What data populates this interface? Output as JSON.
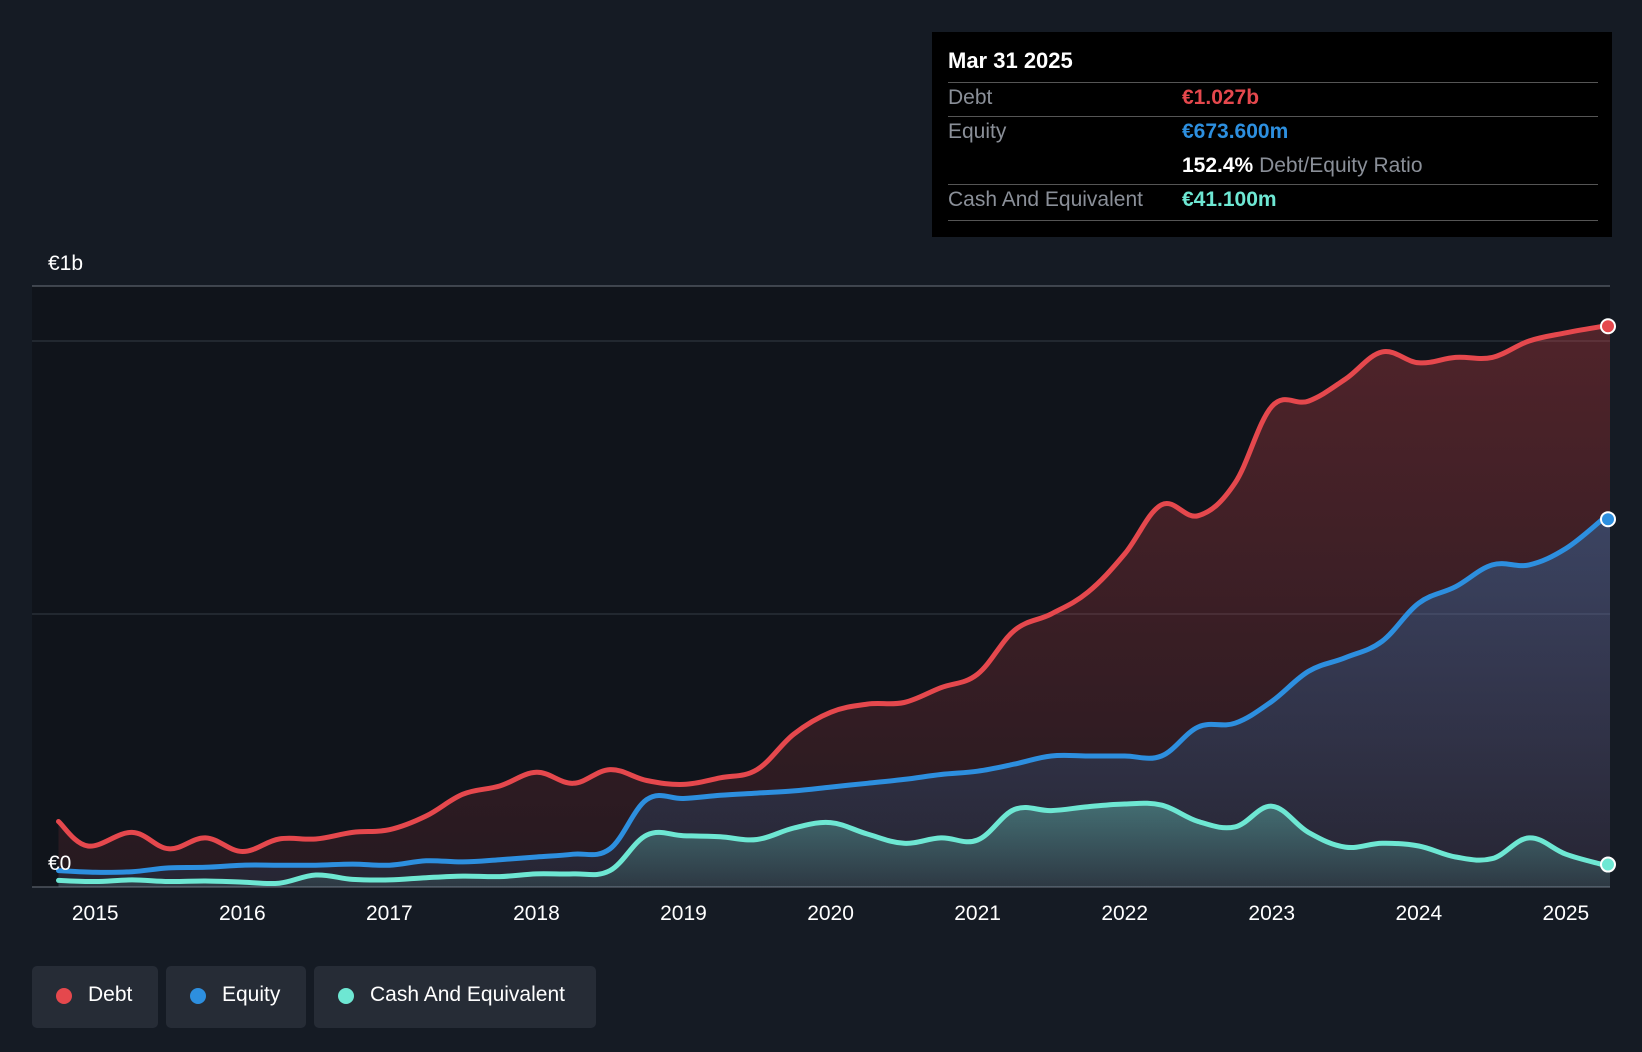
{
  "colors": {
    "debt": "#e5484d",
    "equity": "#2d8fdf",
    "cash": "#6ee7d3",
    "background": "#151b24"
  },
  "tooltip": {
    "date": "Mar 31 2025",
    "debt_label": "Debt",
    "debt_value": "€1.027b",
    "equity_label": "Equity",
    "equity_value": "€673.600m",
    "ratio_value": "152.4%",
    "ratio_label": "Debt/Equity Ratio",
    "cash_label": "Cash And Equivalent",
    "cash_value": "€41.100m"
  },
  "legend": {
    "debt": "Debt",
    "equity": "Equity",
    "cash": "Cash And Equivalent"
  },
  "chart_data": {
    "type": "area",
    "title": "",
    "ylabel_top": "€1b",
    "ylabel_bottom": "€0",
    "ylim": [
      0,
      1.1
    ],
    "xlim": [
      2014.57,
      2025.3
    ],
    "x_ticks": [
      2015,
      2016,
      2017,
      2018,
      2019,
      2020,
      2021,
      2022,
      2023,
      2024,
      2025
    ],
    "x_tick_labels": [
      "2015",
      "2016",
      "2017",
      "2018",
      "2019",
      "2020",
      "2021",
      "2022",
      "2023",
      "2024",
      "2025"
    ],
    "series": [
      {
        "name": "Debt",
        "x": [
          2014.75,
          2014.95,
          2015.25,
          2015.5,
          2015.75,
          2016.0,
          2016.25,
          2016.5,
          2016.75,
          2017.0,
          2017.25,
          2017.5,
          2017.75,
          2018.0,
          2018.25,
          2018.5,
          2018.75,
          2019.0,
          2019.25,
          2019.5,
          2019.75,
          2020.0,
          2020.25,
          2020.5,
          2020.75,
          2021.0,
          2021.25,
          2021.5,
          2021.75,
          2022.0,
          2022.25,
          2022.5,
          2022.75,
          2023.0,
          2023.25,
          2023.5,
          2023.75,
          2024.0,
          2024.25,
          2024.5,
          2024.75,
          2025.0,
          2025.25
        ],
        "values": [
          0.12,
          0.075,
          0.1,
          0.07,
          0.09,
          0.065,
          0.088,
          0.088,
          0.1,
          0.105,
          0.13,
          0.17,
          0.185,
          0.21,
          0.19,
          0.215,
          0.195,
          0.188,
          0.2,
          0.215,
          0.28,
          0.32,
          0.335,
          0.338,
          0.365,
          0.39,
          0.47,
          0.5,
          0.54,
          0.61,
          0.7,
          0.68,
          0.74,
          0.88,
          0.89,
          0.93,
          0.98,
          0.96,
          0.97,
          0.97,
          1.0,
          1.015,
          1.027
        ]
      },
      {
        "name": "Equity",
        "x": [
          2014.75,
          2015.0,
          2015.25,
          2015.5,
          2015.75,
          2016.0,
          2016.25,
          2016.5,
          2016.75,
          2017.0,
          2017.25,
          2017.5,
          2017.75,
          2018.0,
          2018.25,
          2018.5,
          2018.75,
          2019.0,
          2019.25,
          2019.5,
          2019.75,
          2020.0,
          2020.25,
          2020.5,
          2020.75,
          2021.0,
          2021.25,
          2021.5,
          2021.75,
          2022.0,
          2022.25,
          2022.5,
          2022.75,
          2023.0,
          2023.25,
          2023.5,
          2023.75,
          2024.0,
          2024.25,
          2024.5,
          2024.75,
          2025.0,
          2025.25
        ],
        "values": [
          0.03,
          0.027,
          0.028,
          0.035,
          0.036,
          0.04,
          0.04,
          0.04,
          0.042,
          0.04,
          0.048,
          0.046,
          0.05,
          0.055,
          0.06,
          0.07,
          0.16,
          0.162,
          0.168,
          0.172,
          0.176,
          0.183,
          0.19,
          0.197,
          0.206,
          0.212,
          0.225,
          0.24,
          0.24,
          0.24,
          0.24,
          0.293,
          0.3,
          0.34,
          0.395,
          0.42,
          0.45,
          0.52,
          0.55,
          0.59,
          0.59,
          0.62,
          0.6736
        ]
      },
      {
        "name": "Cash And Equivalent",
        "x": [
          2014.75,
          2015.0,
          2015.25,
          2015.5,
          2015.75,
          2016.0,
          2016.25,
          2016.5,
          2016.75,
          2017.0,
          2017.25,
          2017.5,
          2017.75,
          2018.0,
          2018.25,
          2018.5,
          2018.75,
          2019.0,
          2019.25,
          2019.5,
          2019.75,
          2020.0,
          2020.25,
          2020.5,
          2020.75,
          2021.0,
          2021.25,
          2021.5,
          2021.75,
          2022.0,
          2022.25,
          2022.5,
          2022.75,
          2023.0,
          2023.25,
          2023.5,
          2023.75,
          2024.0,
          2024.25,
          2024.5,
          2024.75,
          2025.0,
          2025.25
        ],
        "values": [
          0.012,
          0.01,
          0.013,
          0.01,
          0.011,
          0.009,
          0.007,
          0.022,
          0.014,
          0.013,
          0.017,
          0.02,
          0.019,
          0.024,
          0.024,
          0.03,
          0.095,
          0.094,
          0.092,
          0.087,
          0.108,
          0.118,
          0.097,
          0.08,
          0.09,
          0.086,
          0.142,
          0.14,
          0.147,
          0.152,
          0.15,
          0.12,
          0.11,
          0.148,
          0.1,
          0.073,
          0.08,
          0.075,
          0.055,
          0.052,
          0.09,
          0.06,
          0.0411
        ]
      }
    ]
  }
}
